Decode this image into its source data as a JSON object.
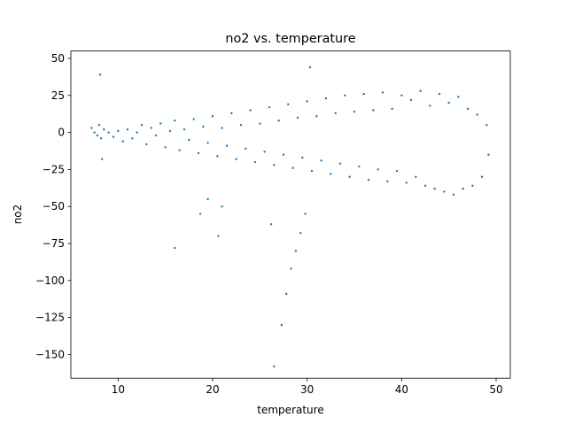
{
  "chart_data": {
    "type": "scatter",
    "title": "no2 vs. temperature",
    "xlabel": "temperature",
    "ylabel": "no2",
    "xlim": [
      5.0,
      51.5
    ],
    "ylim": [
      -166,
      55
    ],
    "xticks": [
      10,
      20,
      30,
      40,
      50
    ],
    "yticks": [
      50,
      25,
      0,
      -25,
      -50,
      -75,
      -100,
      -125,
      -150
    ],
    "xtick_labels": [
      "10",
      "20",
      "30",
      "40",
      "50"
    ],
    "ytick_labels": [
      "50",
      "25",
      "0",
      "−25",
      "−50",
      "−75",
      "−100",
      "−125",
      "−150"
    ],
    "grid": false,
    "marker_color": "#1f77b4",
    "points": [
      [
        7.2,
        3
      ],
      [
        7.5,
        0
      ],
      [
        7.8,
        -2
      ],
      [
        8.0,
        5
      ],
      [
        8.2,
        -4
      ],
      [
        8.5,
        2
      ],
      [
        9.0,
        0
      ],
      [
        9.5,
        -3
      ],
      [
        10.0,
        1
      ],
      [
        10.5,
        -6
      ],
      [
        11.0,
        2
      ],
      [
        11.5,
        -4
      ],
      [
        12.0,
        0
      ],
      [
        12.5,
        5
      ],
      [
        13.0,
        -8
      ],
      [
        13.5,
        3
      ],
      [
        14.0,
        -2
      ],
      [
        14.5,
        6
      ],
      [
        15.0,
        -10
      ],
      [
        15.5,
        1
      ],
      [
        16.0,
        8
      ],
      [
        16.5,
        -12
      ],
      [
        17.0,
        2
      ],
      [
        17.5,
        -5
      ],
      [
        18.0,
        9
      ],
      [
        18.5,
        -14
      ],
      [
        19.0,
        4
      ],
      [
        19.5,
        -7
      ],
      [
        20.0,
        11
      ],
      [
        20.5,
        -16
      ],
      [
        21.0,
        3
      ],
      [
        21.5,
        -9
      ],
      [
        22.0,
        13
      ],
      [
        22.5,
        -18
      ],
      [
        23.0,
        5
      ],
      [
        23.5,
        -11
      ],
      [
        24.0,
        15
      ],
      [
        24.5,
        -20
      ],
      [
        25.0,
        6
      ],
      [
        25.5,
        -13
      ],
      [
        26.0,
        17
      ],
      [
        26.5,
        -22
      ],
      [
        27.0,
        8
      ],
      [
        27.5,
        -15
      ],
      [
        28.0,
        19
      ],
      [
        28.5,
        -24
      ],
      [
        29.0,
        10
      ],
      [
        29.5,
        -17
      ],
      [
        30.0,
        21
      ],
      [
        30.5,
        -26
      ],
      [
        31.0,
        11
      ],
      [
        31.5,
        -19
      ],
      [
        32.0,
        23
      ],
      [
        32.5,
        -28
      ],
      [
        33.0,
        13
      ],
      [
        33.5,
        -21
      ],
      [
        34.0,
        25
      ],
      [
        34.5,
        -30
      ],
      [
        35.0,
        14
      ],
      [
        35.5,
        -23
      ],
      [
        36.0,
        26
      ],
      [
        36.5,
        -32
      ],
      [
        37.0,
        15
      ],
      [
        37.5,
        -25
      ],
      [
        38.0,
        27
      ],
      [
        38.5,
        -33
      ],
      [
        39.0,
        16
      ],
      [
        39.5,
        -26
      ],
      [
        40.0,
        25
      ],
      [
        40.5,
        -34
      ],
      [
        41.0,
        22
      ],
      [
        41.5,
        -30
      ],
      [
        42.0,
        28
      ],
      [
        42.5,
        -36
      ],
      [
        43.0,
        18
      ],
      [
        43.5,
        -38
      ],
      [
        44.0,
        26
      ],
      [
        44.5,
        -40
      ],
      [
        45.0,
        20
      ],
      [
        45.5,
        -42
      ],
      [
        46.0,
        24
      ],
      [
        46.5,
        -38
      ],
      [
        47.0,
        16
      ],
      [
        47.5,
        -36
      ],
      [
        48.0,
        12
      ],
      [
        48.5,
        -30
      ],
      [
        49.0,
        5
      ],
      [
        49.2,
        -15
      ],
      [
        8.1,
        39
      ],
      [
        8.3,
        -18
      ],
      [
        16.0,
        -78
      ],
      [
        18.7,
        -55
      ],
      [
        19.5,
        -45
      ],
      [
        20.6,
        -70
      ],
      [
        21.0,
        -50
      ],
      [
        26.2,
        -62
      ],
      [
        26.5,
        -158
      ],
      [
        27.3,
        -130
      ],
      [
        27.8,
        -109
      ],
      [
        28.3,
        -92
      ],
      [
        28.8,
        -80
      ],
      [
        29.3,
        -68
      ],
      [
        29.8,
        -55
      ],
      [
        30.3,
        44
      ]
    ]
  }
}
